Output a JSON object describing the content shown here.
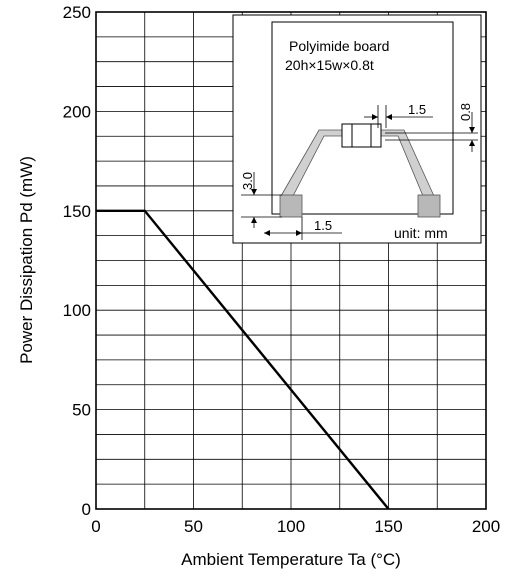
{
  "chart_data": {
    "type": "line",
    "xlabel": "Ambient Temperature   Ta   (°C)",
    "ylabel": "Power Dissipation   Pd   (mW)",
    "xlim": [
      0,
      200
    ],
    "ylim": [
      0,
      250
    ],
    "x_ticks": [
      "0",
      "50",
      "100",
      "150",
      "200"
    ],
    "y_ticks": [
      "0",
      "50",
      "100",
      "150",
      "200",
      "250"
    ],
    "grid": true,
    "series": [
      {
        "x": [
          0,
          25,
          150
        ],
        "y": [
          150,
          150,
          0
        ]
      }
    ]
  },
  "inset": {
    "title_line1": "Polyimide board",
    "title_line2": "20h×15w×0.8t",
    "dim_pad_spacing": "1.5",
    "dim_thickness": "0.8",
    "dim_height": "3.0",
    "dim_pad_width": "1.5",
    "unit_label": "unit:  mm",
    "colors": {
      "board_trace": "#d0d0d0",
      "pad": "#b8b8b8"
    }
  }
}
